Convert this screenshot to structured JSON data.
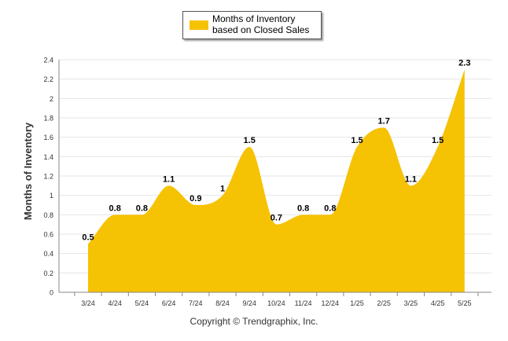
{
  "colors": {
    "area": "#f6c204",
    "grid": "#e6e6e6",
    "axis": "#888888",
    "text": "#000000"
  },
  "legend": {
    "label": "Months of Inventory based on Closed Sales"
  },
  "footer": {
    "copyright": "Copyright © Trendgraphix, Inc."
  },
  "chart_data": {
    "type": "area",
    "categories": [
      "3/24",
      "4/24",
      "5/24",
      "6/24",
      "7/24",
      "8/24",
      "9/24",
      "10/24",
      "11/24",
      "12/24",
      "1/25",
      "2/25",
      "3/25",
      "4/25",
      "5/25"
    ],
    "series": [
      {
        "name": "Months of Inventory based on Closed Sales",
        "values": [
          0.5,
          0.8,
          0.8,
          1.1,
          0.9,
          1,
          1.5,
          0.7,
          0.8,
          0.8,
          1.5,
          1.7,
          1.1,
          1.5,
          2.3
        ]
      }
    ],
    "ylabel": "Months of Inventory",
    "ylim": [
      0,
      2.4
    ],
    "yticks": [
      "0",
      "0.2",
      "0.4",
      "0.6",
      "0.8",
      "1",
      "1.2",
      "1.4",
      "1.6",
      "1.8",
      "2",
      "2.2",
      "2.4"
    ],
    "grid": true,
    "legend_position": "top-center"
  }
}
